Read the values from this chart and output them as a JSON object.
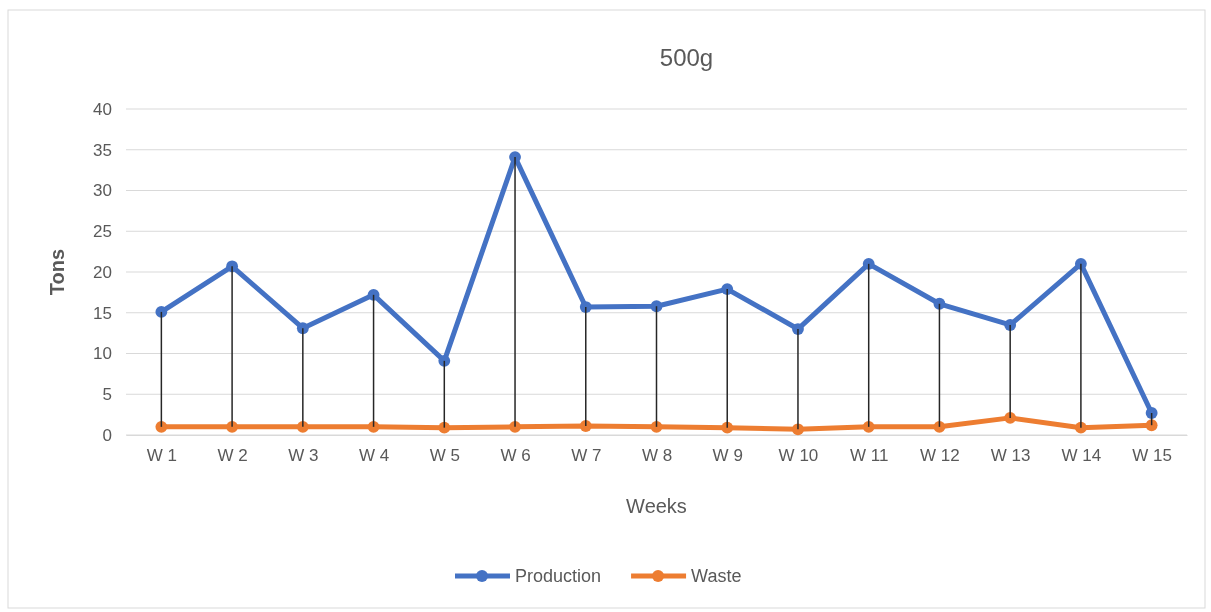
{
  "chart_data": {
    "type": "line",
    "title": "500g",
    "xlabel": "Weeks",
    "ylabel": "Tons",
    "categories": [
      "W 1",
      "W 2",
      "W 3",
      "W 4",
      "W 5",
      "W 6",
      "W 7",
      "W 8",
      "W 9",
      "W 10",
      "W 11",
      "W 12",
      "W 13",
      "W 14",
      "W 15"
    ],
    "series": [
      {
        "name": "Production",
        "color": "#4472c4",
        "values": [
          15.1,
          20.7,
          13.1,
          17.2,
          9.1,
          34.1,
          15.7,
          15.8,
          17.9,
          13.0,
          21.0,
          16.1,
          13.5,
          21.0,
          2.7
        ],
        "errors": [
          [
            1.0,
            15.1
          ],
          [
            1.0,
            20.7
          ],
          [
            1.0,
            13.1
          ],
          [
            1.0,
            17.2
          ],
          [
            0.9,
            9.1
          ],
          [
            1.0,
            34.1
          ],
          [
            1.1,
            15.7
          ],
          [
            1.0,
            15.8
          ],
          [
            0.9,
            17.9
          ],
          [
            0.7,
            13.0
          ],
          [
            1.0,
            21.0
          ],
          [
            1.0,
            16.1
          ],
          [
            2.1,
            13.5
          ],
          [
            0.9,
            21.0
          ],
          [
            1.2,
            2.7
          ]
        ]
      },
      {
        "name": "Waste",
        "color": "#ed7d31",
        "values": [
          1.0,
          1.0,
          1.0,
          1.0,
          0.9,
          1.0,
          1.1,
          1.0,
          0.9,
          0.7,
          1.0,
          1.0,
          2.1,
          0.9,
          1.2
        ]
      }
    ],
    "ylim": [
      0,
      40
    ],
    "yticks": [
      0,
      5,
      10,
      15,
      20,
      25,
      30,
      35,
      40
    ],
    "grid": "y",
    "legend": "bottom",
    "marker": "circle",
    "line_style": "solid"
  }
}
